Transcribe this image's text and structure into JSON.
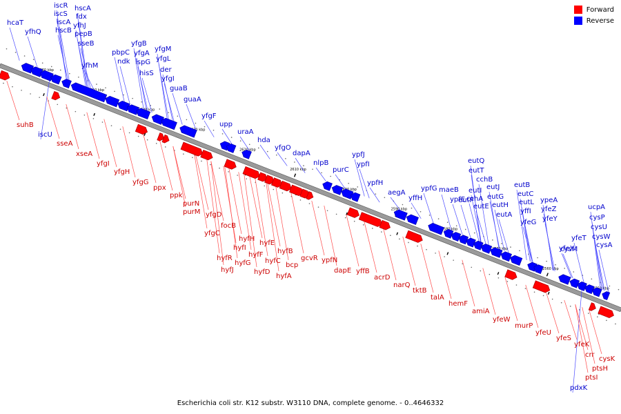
{
  "caption": "Escherichia coli str. K12 substr. W3110 DNA, complete genome. - 0..4646332",
  "legend": [
    {
      "label": "Forward",
      "color": "#ff0000"
    },
    {
      "label": "Reverse",
      "color": "#0000ff"
    }
  ],
  "colors": {
    "forward": "#ff0000",
    "reverse": "#0000ff",
    "forward_dark": "#aa0000",
    "reverse_dark": "#0000aa",
    "backbone": "#888888",
    "label_forward": "#cc0000",
    "label_reverse": "#0000cc"
  },
  "axis": {
    "min_kbp": 2545,
    "max_kbp": 2668,
    "ticks": [
      {
        "kbp": 2660,
        "label": "2660 kbp"
      },
      {
        "kbp": 2650,
        "label": "2650 kbp"
      },
      {
        "kbp": 2640,
        "label": "2640 kbp"
      },
      {
        "kbp": 2630,
        "label": "2630 kbp"
      },
      {
        "kbp": 2620,
        "label": "2620 kbp"
      },
      {
        "kbp": 2610,
        "label": "2610 kbp"
      },
      {
        "kbp": 2600,
        "label": "2600 kbp"
      },
      {
        "kbp": 2590,
        "label": "2590 kbp"
      },
      {
        "kbp": 2580,
        "label": "2580 kbp"
      },
      {
        "kbp": 2570,
        "label": "2570 kbp"
      },
      {
        "kbp": 2560,
        "label": "2560 kbp"
      },
      {
        "kbp": 2550,
        "label": "2550 kbp"
      }
    ]
  },
  "reverse_labels": [
    "hcaT",
    "iscR",
    "iscS",
    "iscA",
    "hscB",
    "hscA",
    "fdx",
    "yfhJ",
    "pepB",
    "sseB",
    "yfhQ",
    "iscU",
    "yfhM",
    "pbpC",
    "ndk",
    "yfgB",
    "yfgA",
    "ispG",
    "hisS",
    "yfgM",
    "yfgL",
    "der",
    "yfgI",
    "guaB",
    "guaA",
    "yfgF",
    "upp",
    "uraA",
    "hda",
    "yfgO",
    "dapA",
    "nlpB",
    "purC",
    "ypfJ",
    "ypfI",
    "ypfH",
    "aegA",
    "yffH",
    "ypfG",
    "maeB",
    "ypfE",
    "eutP",
    "eutQ",
    "eutT",
    "cchB",
    "eutI",
    "cchA",
    "eutE",
    "eutJ",
    "eutG",
    "eutH",
    "eutA",
    "eutB",
    "eutC",
    "eutL",
    "yffI",
    "yfeG",
    "ypeA",
    "yfeZ",
    "yfeY",
    "yfeX",
    "yfeT",
    "ucpA",
    "cysP",
    "cysU",
    "cysW",
    "cysA",
    "cysM",
    "pdxK"
  ],
  "forward_labels": [
    "suhB",
    "sseA",
    "xseA",
    "yfgI",
    "yfgH",
    "yfgG",
    "ppx",
    "ppk",
    "purN",
    "purM",
    "yfgD",
    "yfgC",
    "focB",
    "hyfH",
    "hyfI",
    "hyfR",
    "hyfJ",
    "hyfG",
    "hyfF",
    "hyfE",
    "hyfD",
    "hyfC",
    "bcp",
    "hyfB",
    "hyfA",
    "gcvR",
    "ypfN",
    "dapE",
    "yffB",
    "acrD",
    "narQ",
    "tktB",
    "talA",
    "hemF",
    "amiA",
    "yfeW",
    "murP",
    "yfeU",
    "yfeS",
    "yfeK",
    "crr",
    "cysK",
    "ptsH",
    "ptsI"
  ]
}
